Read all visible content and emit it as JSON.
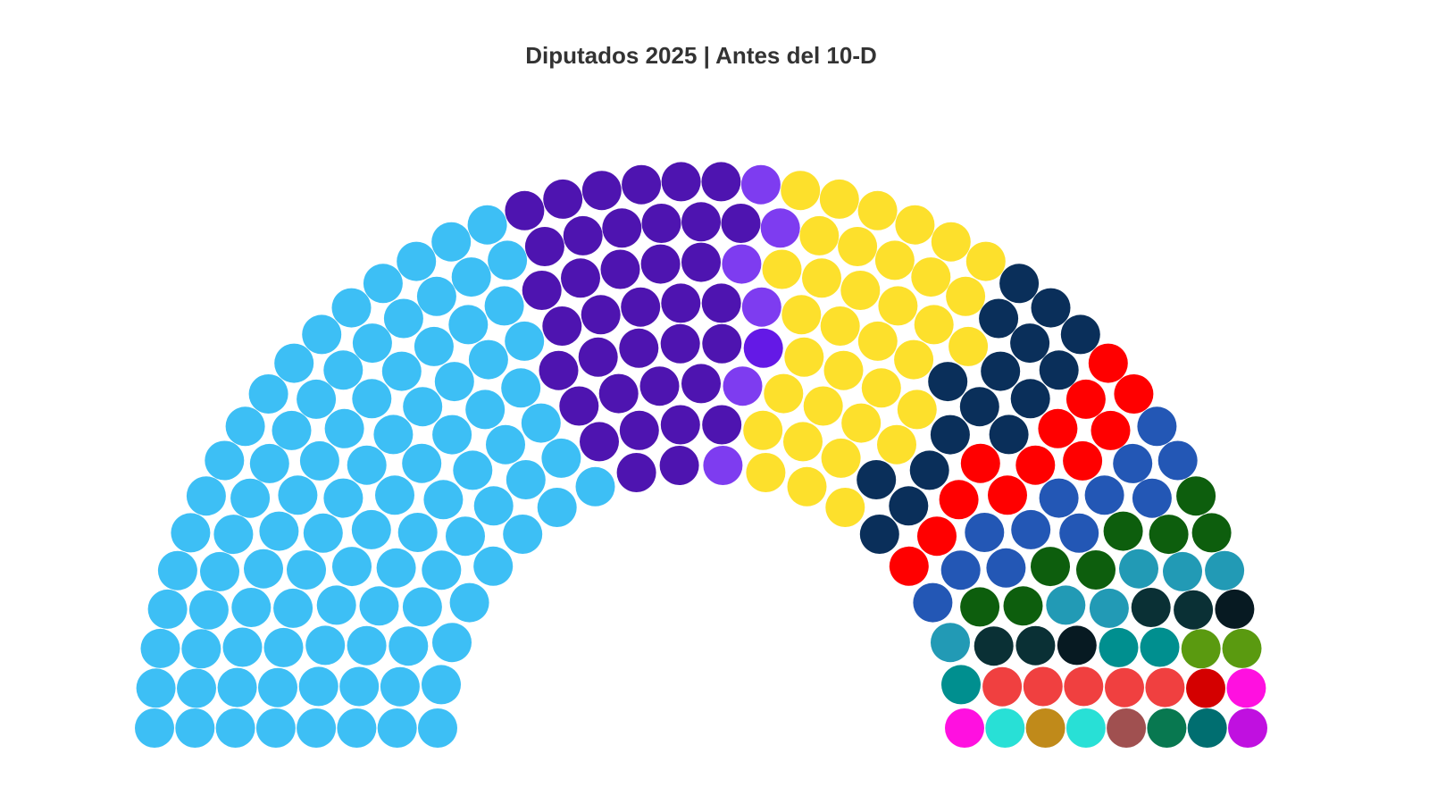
{
  "chart_data": {
    "type": "parliament",
    "title": "Diputados 2025 | Antes del 10-D",
    "values": [
      98,
      37,
      6,
      1,
      35,
      16,
      12,
      12,
      8,
      6,
      4,
      2,
      3,
      2,
      5,
      1,
      2,
      2,
      1,
      1,
      1,
      1,
      1
    ],
    "colors": [
      "#3dbff5",
      "#4e14b0",
      "#7e3cf0",
      "#6419e6",
      "#fde02c",
      "#0a2f5a",
      "#ff0000",
      "#2357b5",
      "#0d5e0d",
      "#229ab5",
      "#0a3035",
      "#071a22",
      "#008f8f",
      "#5a9a10",
      "#f04040",
      "#d40000",
      "#ff10e0",
      "#28e0d6",
      "#a05050",
      "#087850",
      "#006e70",
      "#c010e0",
      "#c08a1a"
    ]
  }
}
